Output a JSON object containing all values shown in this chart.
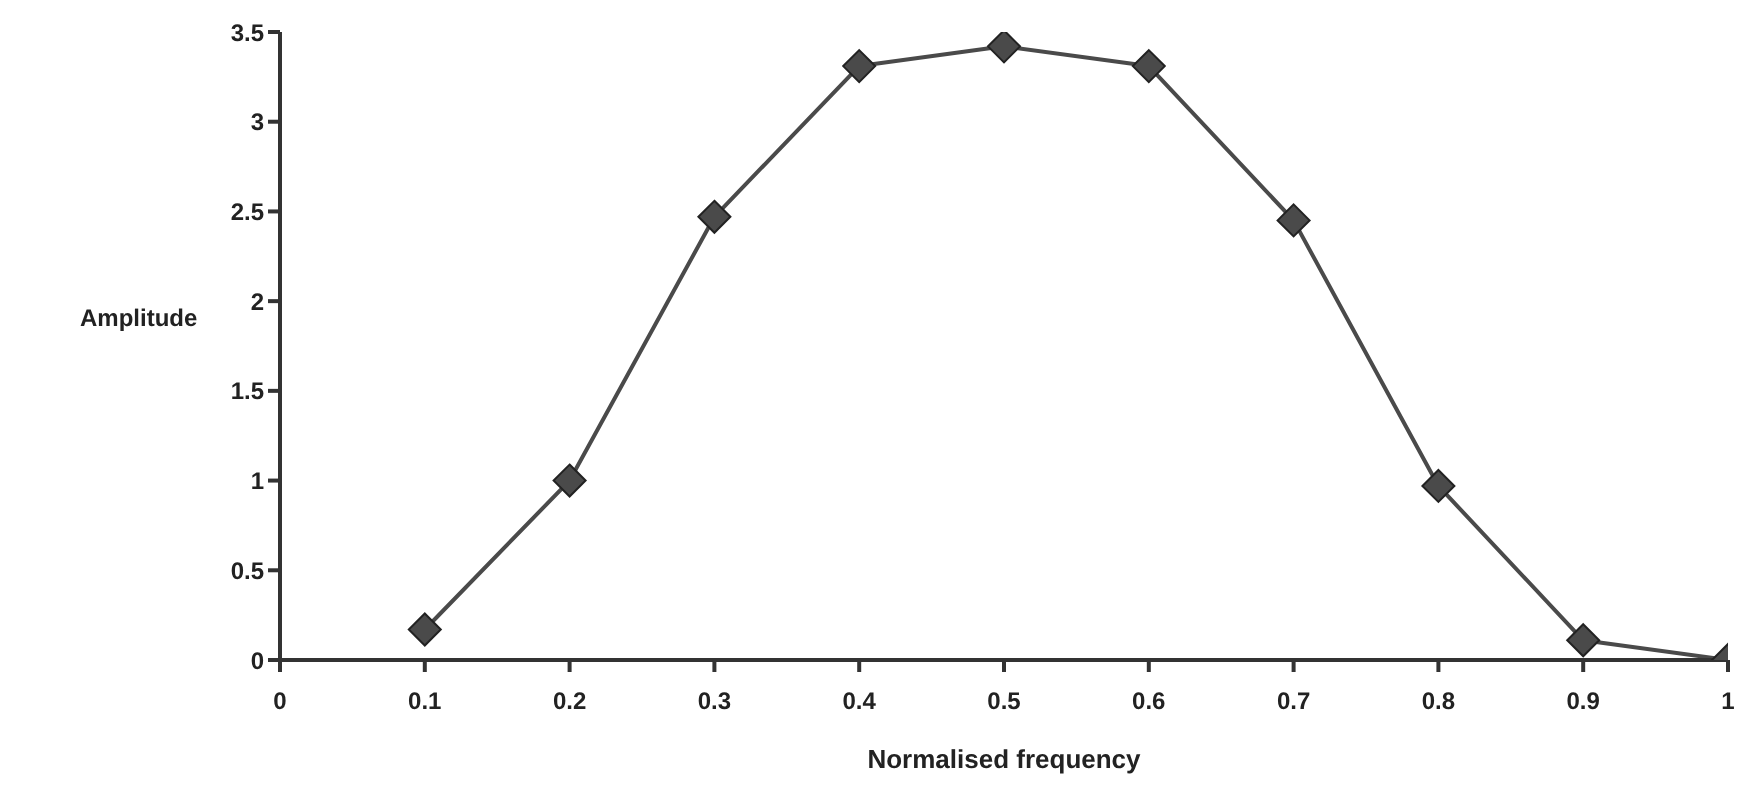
{
  "chart_data": {
    "type": "line",
    "xlabel": "Normalised frequency",
    "ylabel": "Amplitude",
    "x": [
      0.1,
      0.2,
      0.3,
      0.4,
      0.5,
      0.6,
      0.7,
      0.8,
      0.9,
      1
    ],
    "series": [
      {
        "color": "#4a4a4a",
        "values": [
          0.17,
          1.0,
          2.47,
          3.31,
          3.42,
          3.31,
          2.45,
          0.97,
          0.11,
          0.0
        ]
      }
    ],
    "xlim": [
      0,
      1
    ],
    "xticks": [
      0,
      0.1,
      0.2,
      0.3,
      0.4,
      0.5,
      0.6,
      0.7,
      0.8,
      0.9,
      1
    ],
    "ylim": [
      0,
      3.5
    ],
    "yticks": [
      0,
      0.5,
      1,
      1.5,
      2,
      2.5,
      3,
      3.5
    ],
    "grid": false,
    "legend": false,
    "marker": "diamond",
    "line_style": "solid"
  }
}
